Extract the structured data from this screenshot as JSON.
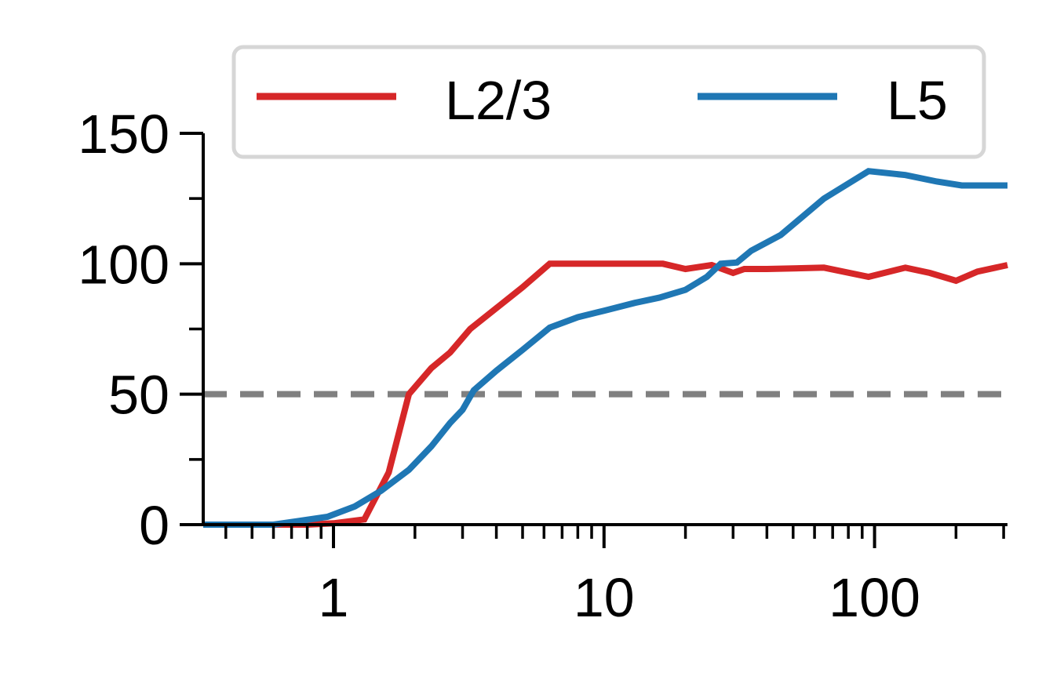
{
  "chart_data": {
    "type": "line",
    "title": "",
    "xlabel": "",
    "ylabel": "",
    "xscale": "log",
    "xlim": [
      0.33,
      310
    ],
    "ylim": [
      0,
      150
    ],
    "grid": false,
    "legend": {
      "placement": "top",
      "columns": 2
    },
    "x_ticks": [
      {
        "value": 1,
        "label": "1"
      },
      {
        "value": 10,
        "label": "10"
      },
      {
        "value": 100,
        "label": "100"
      }
    ],
    "y_ticks": [
      {
        "value": 0,
        "label": "0"
      },
      {
        "value": 50,
        "label": "50"
      },
      {
        "value": 100,
        "label": "100"
      },
      {
        "value": 150,
        "label": "150"
      }
    ],
    "y_minor_ticks": [
      25,
      75,
      125
    ],
    "reference_line": {
      "y": 50,
      "style": "dashed",
      "color": "#808080"
    },
    "series": [
      {
        "name": "L2/3",
        "color": "#d62728",
        "points": [
          [
            0.33,
            0
          ],
          [
            0.6,
            0
          ],
          [
            0.8,
            0
          ],
          [
            1.0,
            0.5
          ],
          [
            1.3,
            2
          ],
          [
            1.6,
            20
          ],
          [
            1.9,
            50
          ],
          [
            2.3,
            60
          ],
          [
            2.7,
            66
          ],
          [
            3.2,
            75
          ],
          [
            4.0,
            83
          ],
          [
            5.0,
            91
          ],
          [
            6.3,
            100
          ],
          [
            8.0,
            100
          ],
          [
            10,
            100
          ],
          [
            13,
            100
          ],
          [
            16.5,
            100
          ],
          [
            20,
            98
          ],
          [
            25,
            99.5
          ],
          [
            30,
            96.5
          ],
          [
            33,
            98
          ],
          [
            40,
            98
          ],
          [
            65,
            98.5
          ],
          [
            95,
            95
          ],
          [
            130,
            98.5
          ],
          [
            160,
            96.5
          ],
          [
            200,
            93.5
          ],
          [
            240,
            97
          ],
          [
            280,
            98.5
          ],
          [
            310,
            99.5
          ]
        ]
      },
      {
        "name": "L5",
        "color": "#1f77b4",
        "points": [
          [
            0.33,
            0
          ],
          [
            0.6,
            0
          ],
          [
            0.95,
            3
          ],
          [
            1.2,
            7
          ],
          [
            1.5,
            13
          ],
          [
            1.9,
            21
          ],
          [
            2.3,
            30
          ],
          [
            2.7,
            39
          ],
          [
            3.0,
            44
          ],
          [
            3.3,
            51.5
          ],
          [
            4.0,
            59
          ],
          [
            5.0,
            67
          ],
          [
            6.3,
            75.5
          ],
          [
            8.0,
            79.5
          ],
          [
            10,
            82
          ],
          [
            13,
            85
          ],
          [
            16,
            87
          ],
          [
            20,
            90
          ],
          [
            24,
            95
          ],
          [
            27,
            100
          ],
          [
            31,
            100.5
          ],
          [
            35,
            105
          ],
          [
            45,
            111
          ],
          [
            65,
            125
          ],
          [
            95,
            135.5
          ],
          [
            130,
            134
          ],
          [
            170,
            131.5
          ],
          [
            210,
            130
          ],
          [
            260,
            130
          ],
          [
            310,
            130
          ]
        ]
      }
    ]
  }
}
